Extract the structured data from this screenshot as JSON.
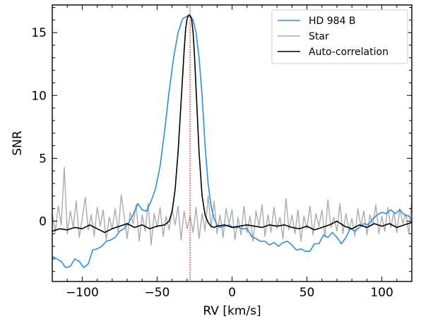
{
  "chart_data": {
    "type": "line",
    "xlabel": "RV [km/s]",
    "ylabel": "SNR",
    "xlim": [
      -120,
      120
    ],
    "ylim": [
      -4.8,
      17.2
    ],
    "xticks": [
      -100,
      -50,
      0,
      50,
      100
    ],
    "xtick_labels": [
      "−100",
      "−50",
      "0",
      "50",
      "100"
    ],
    "yticks": [
      0,
      5,
      10,
      15
    ],
    "ytick_labels": [
      "0",
      "5",
      "10",
      "15"
    ],
    "grid": false,
    "legend_position": "top-right",
    "vline": {
      "x": -28,
      "color": "#e41a1c",
      "style": "dotted"
    },
    "series": [
      {
        "name": "HD 984 B",
        "color": "#2a8ee0",
        "x": [
          -120,
          -117,
          -114,
          -111,
          -108,
          -105,
          -102,
          -99,
          -96,
          -93,
          -90,
          -87,
          -84,
          -81,
          -78,
          -75,
          -72,
          -69,
          -66,
          -63,
          -60,
          -57,
          -54,
          -51,
          -48,
          -45,
          -42,
          -39,
          -36,
          -33,
          -30,
          -28,
          -26,
          -24,
          -22,
          -20,
          -18,
          -16,
          -14,
          -12,
          -10,
          -8,
          -5,
          -2,
          1,
          4,
          7,
          10,
          13,
          16,
          19,
          22,
          25,
          28,
          31,
          34,
          37,
          40,
          43,
          46,
          49,
          52,
          55,
          58,
          61,
          64,
          67,
          70,
          73,
          76,
          79,
          82,
          85,
          88,
          91,
          94,
          97,
          100,
          103,
          106,
          109,
          112,
          115,
          118,
          120
        ],
        "y": [
          -2.8,
          -3.0,
          -3.2,
          -3.7,
          -3.6,
          -3.0,
          -3.2,
          -3.7,
          -3.4,
          -2.3,
          -2.2,
          -2.0,
          -1.6,
          -1.5,
          -1.3,
          -0.8,
          -0.6,
          -0.1,
          0.5,
          1.4,
          0.9,
          0.8,
          1.6,
          2.6,
          4.4,
          7.2,
          10.3,
          13.0,
          15.0,
          16.1,
          16.3,
          16.3,
          16.0,
          15.0,
          13.0,
          10.0,
          6.0,
          3.0,
          1.2,
          0.2,
          -0.3,
          -0.5,
          -0.4,
          -0.3,
          -0.5,
          -0.5,
          -0.6,
          -0.6,
          -1.2,
          -1.4,
          -1.6,
          -1.6,
          -1.9,
          -1.7,
          -2.0,
          -1.7,
          -1.6,
          -1.9,
          -2.3,
          -2.2,
          -2.4,
          -2.4,
          -1.8,
          -1.8,
          -1.1,
          -1.3,
          -0.9,
          -1.3,
          -1.8,
          -1.3,
          -0.6,
          -0.8,
          -0.5,
          -0.2,
          -0.3,
          0.2,
          0.5,
          0.7,
          0.6,
          0.9,
          0.6,
          0.9,
          0.5,
          0.4,
          0.1
        ]
      },
      {
        "name": "Star",
        "color": "#ababab",
        "x": [
          -120,
          -118,
          -116,
          -114,
          -112,
          -110,
          -108,
          -106,
          -104,
          -102,
          -100,
          -98,
          -96,
          -94,
          -92,
          -90,
          -88,
          -86,
          -84,
          -82,
          -80,
          -78,
          -76,
          -74,
          -72,
          -70,
          -68,
          -66,
          -64,
          -62,
          -60,
          -58,
          -56,
          -54,
          -52,
          -50,
          -48,
          -46,
          -44,
          -42,
          -40,
          -38,
          -36,
          -34,
          -32,
          -30,
          -28,
          -26,
          -24,
          -22,
          -20,
          -18,
          -16,
          -14,
          -12,
          -10,
          -8,
          -6,
          -4,
          -2,
          0,
          2,
          4,
          6,
          8,
          10,
          12,
          14,
          16,
          18,
          20,
          22,
          24,
          26,
          28,
          30,
          32,
          34,
          36,
          38,
          40,
          42,
          44,
          46,
          48,
          50,
          52,
          54,
          56,
          58,
          60,
          62,
          64,
          66,
          68,
          70,
          72,
          74,
          76,
          78,
          80,
          82,
          84,
          86,
          88,
          90,
          92,
          94,
          96,
          98,
          100,
          102,
          104,
          106,
          108,
          110,
          112,
          114,
          116,
          118,
          120
        ],
        "y": [
          0.6,
          -0.9,
          1.2,
          -0.3,
          4.3,
          -1.0,
          0.8,
          -0.5,
          1.6,
          -1.3,
          0.2,
          1.9,
          -0.7,
          0.5,
          -1.2,
          1.1,
          -0.4,
          0.9,
          -1.5,
          0.3,
          -0.6,
          1.0,
          -0.9,
          2.1,
          0.4,
          -1.4,
          0.7,
          -0.2,
          1.3,
          -1.6,
          0.5,
          -0.8,
          1.4,
          -1.9,
          0.6,
          -0.5,
          1.1,
          -1.2,
          0.4,
          -0.7,
          0.9,
          -0.3,
          1.2,
          -1.5,
          0.8,
          -0.6,
          0.4,
          -0.9,
          1.1,
          -1.4,
          0.6,
          -0.8,
          2.0,
          -0.5,
          1.6,
          -1.0,
          0.5,
          -1.3,
          1.0,
          -0.2,
          0.9,
          -1.5,
          0.3,
          -1.1,
          1.2,
          -0.9,
          0.4,
          -1.6,
          0.8,
          -0.4,
          1.3,
          -1.2,
          0.5,
          -0.9,
          1.1,
          -0.6,
          0.3,
          -1.4,
          1.8,
          -0.7,
          0.5,
          -1.0,
          0.9,
          -1.6,
          0.4,
          -0.6,
          1.2,
          -1.1,
          0.6,
          -0.4,
          0.9,
          -1.3,
          1.7,
          -0.5,
          0.3,
          -0.8,
          1.4,
          -1.0,
          0.6,
          -0.7,
          0.2,
          -1.2,
          1.0,
          -0.4,
          0.8,
          -1.1,
          0.5,
          -0.3,
          1.3,
          -1.0,
          0.4,
          -0.8,
          1.1,
          -0.5,
          0.7,
          -0.9,
          1.0,
          -0.2,
          0.6,
          -1.0,
          1.8
        ]
      },
      {
        "name": "Auto-correlation",
        "color": "#000000",
        "x": [
          -120,
          -115,
          -110,
          -105,
          -100,
          -95,
          -90,
          -85,
          -80,
          -75,
          -70,
          -65,
          -60,
          -55,
          -50,
          -45,
          -42,
          -40,
          -38,
          -36,
          -34,
          -32,
          -31,
          -30,
          -29,
          -28,
          -27,
          -26,
          -25,
          -24,
          -22,
          -20,
          -18,
          -16,
          -14,
          -12,
          -10,
          -5,
          0,
          5,
          10,
          15,
          20,
          25,
          30,
          35,
          40,
          45,
          50,
          55,
          60,
          65,
          70,
          75,
          80,
          85,
          90,
          95,
          100,
          105,
          110,
          115,
          120
        ],
        "y": [
          -0.8,
          -0.6,
          -0.7,
          -0.5,
          -0.6,
          -0.3,
          -0.6,
          -0.9,
          -0.6,
          -0.4,
          -0.2,
          -0.5,
          -0.3,
          -0.6,
          -0.4,
          -0.3,
          0.0,
          0.8,
          2.5,
          5.5,
          9.5,
          13.5,
          15.3,
          16.1,
          16.4,
          16.4,
          16.1,
          15.0,
          13.0,
          10.5,
          5.5,
          2.0,
          0.5,
          -0.1,
          -0.4,
          -0.5,
          -0.4,
          -0.3,
          -0.5,
          -0.4,
          -0.3,
          -0.4,
          -0.5,
          -0.3,
          -0.4,
          -0.3,
          -0.5,
          -0.6,
          -0.4,
          -0.7,
          -0.5,
          -0.3,
          0.0,
          -0.4,
          -0.6,
          -0.3,
          -0.5,
          -0.2,
          -0.4,
          -0.2,
          -0.5,
          -0.3,
          -0.1
        ]
      }
    ]
  }
}
